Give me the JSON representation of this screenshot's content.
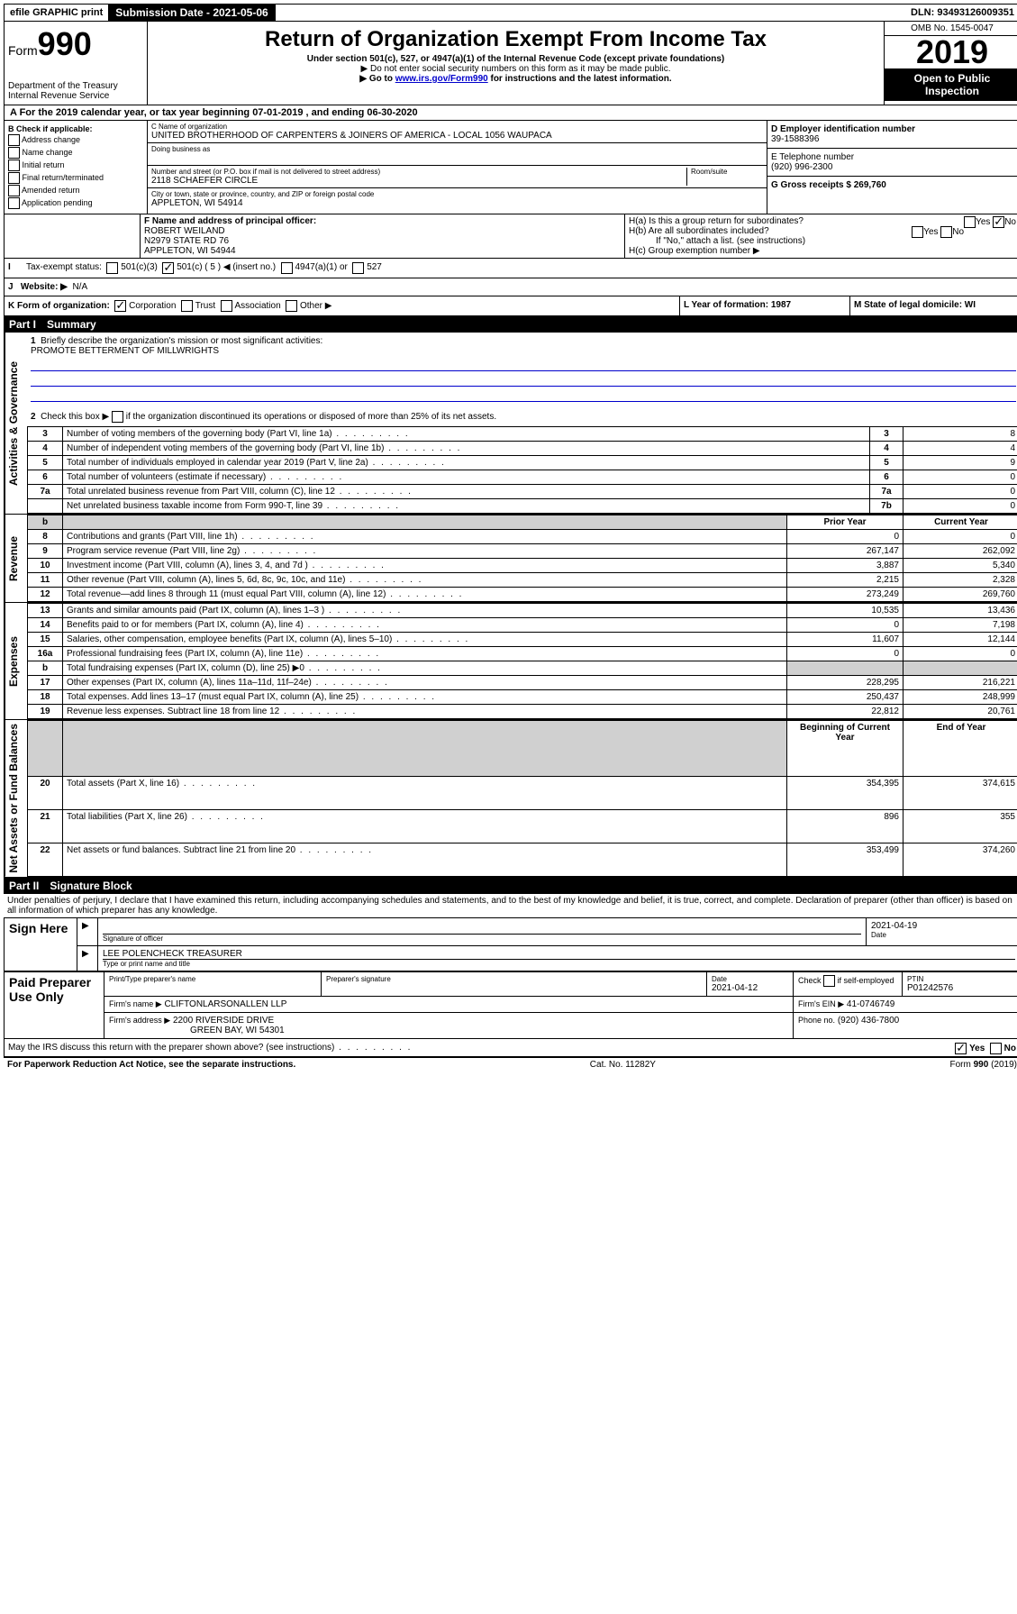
{
  "topbar": {
    "efile": "efile GRAPHIC print",
    "submission": "Submission Date - 2021-05-06",
    "dln": "DLN: 93493126009351"
  },
  "header": {
    "form_prefix": "Form",
    "form_no": "990",
    "dept": "Department of the Treasury",
    "irs": "Internal Revenue Service",
    "title": "Return of Organization Exempt From Income Tax",
    "subtitle": "Under section 501(c), 527, or 4947(a)(1) of the Internal Revenue Code (except private foundations)",
    "note1": "▶ Do not enter social security numbers on this form as it may be made public.",
    "note2_a": "▶ Go to ",
    "note2_link": "www.irs.gov/Form990",
    "note2_b": " for instructions and the latest information.",
    "omb": "OMB No. 1545-0047",
    "year": "2019",
    "open": "Open to Public Inspection"
  },
  "line_a": "A   For the 2019 calendar year, or tax year beginning 07-01-2019    , and ending 06-30-2020",
  "box_b": {
    "title": "B Check if applicable:",
    "items": [
      "Address change",
      "Name change",
      "Initial return",
      "Final return/terminated",
      "Amended return",
      "Application pending"
    ]
  },
  "box_c": {
    "label": "C Name of organization",
    "name": "UNITED BROTHERHOOD OF CARPENTERS & JOINERS OF AMERICA - LOCAL 1056 WAUPACA",
    "dba_label": "Doing business as",
    "addr_label": "Number and street (or P.O. box if mail is not delivered to street address)",
    "room": "Room/suite",
    "addr": "2118 SCHAEFER CIRCLE",
    "city_label": "City or town, state or province, country, and ZIP or foreign postal code",
    "city": "APPLETON, WI  54914"
  },
  "box_d": {
    "label": "D Employer identification number",
    "val": "39-1588396"
  },
  "box_e": {
    "label": "E Telephone number",
    "val": "(920) 996-2300"
  },
  "box_g": {
    "label": "G Gross receipts $ 269,760"
  },
  "box_f": {
    "label": "F  Name and address of principal officer:",
    "name": "ROBERT WEILAND",
    "addr1": "N2979 STATE RD 76",
    "addr2": "APPLETON, WI  54944"
  },
  "box_h": {
    "a": "H(a)  Is this a group return for subordinates?",
    "b": "H(b)  Are all subordinates included?",
    "b_note": "If \"No,\" attach a list. (see instructions)",
    "c": "H(c)  Group exemption number ▶",
    "yes": "Yes",
    "no": "No"
  },
  "box_i": {
    "label": "Tax-exempt status:",
    "c3": "501(c)(3)",
    "c": "501(c) ( 5 ) ◀ (insert no.)",
    "a1": "4947(a)(1) or",
    "527": "527"
  },
  "box_j": {
    "label": "Website: ▶",
    "val": "N/A"
  },
  "box_k": {
    "label": "K Form of organization:",
    "corp": "Corporation",
    "trust": "Trust",
    "assoc": "Association",
    "other": "Other ▶"
  },
  "box_l": {
    "label": "L Year of formation: 1987"
  },
  "box_m": {
    "label": "M State of legal domicile: WI"
  },
  "part1": {
    "num": "Part I",
    "title": "Summary"
  },
  "summary": {
    "q1": "Briefly describe the organization's mission or most significant activities:",
    "q1_val": "PROMOTE BETTERMENT OF MILLWRIGHTS",
    "q2": "Check this box ▶         if the organization discontinued its operations or disposed of more than 25% of its net assets.",
    "rows_top": [
      {
        "n": "3",
        "t": "Number of voting members of the governing body (Part VI, line 1a)",
        "l": "3",
        "v": "8"
      },
      {
        "n": "4",
        "t": "Number of independent voting members of the governing body (Part VI, line 1b)",
        "l": "4",
        "v": "4"
      },
      {
        "n": "5",
        "t": "Total number of individuals employed in calendar year 2019 (Part V, line 2a)",
        "l": "5",
        "v": "9"
      },
      {
        "n": "6",
        "t": "Total number of volunteers (estimate if necessary)",
        "l": "6",
        "v": "0"
      },
      {
        "n": "7a",
        "t": "Total unrelated business revenue from Part VIII, column (C), line 12",
        "l": "7a",
        "v": "0"
      },
      {
        "n": "",
        "t": "Net unrelated business taxable income from Form 990-T, line 39",
        "l": "7b",
        "v": "0"
      }
    ],
    "hdr_prior": "Prior Year",
    "hdr_current": "Current Year",
    "revenue": [
      {
        "n": "8",
        "t": "Contributions and grants (Part VIII, line 1h)",
        "p": "0",
        "c": "0"
      },
      {
        "n": "9",
        "t": "Program service revenue (Part VIII, line 2g)",
        "p": "267,147",
        "c": "262,092"
      },
      {
        "n": "10",
        "t": "Investment income (Part VIII, column (A), lines 3, 4, and 7d )",
        "p": "3,887",
        "c": "5,340"
      },
      {
        "n": "11",
        "t": "Other revenue (Part VIII, column (A), lines 5, 6d, 8c, 9c, 10c, and 11e)",
        "p": "2,215",
        "c": "2,328"
      },
      {
        "n": "12",
        "t": "Total revenue—add lines 8 through 11 (must equal Part VIII, column (A), line 12)",
        "p": "273,249",
        "c": "269,760"
      }
    ],
    "expenses": [
      {
        "n": "13",
        "t": "Grants and similar amounts paid (Part IX, column (A), lines 1–3 )",
        "p": "10,535",
        "c": "13,436"
      },
      {
        "n": "14",
        "t": "Benefits paid to or for members (Part IX, column (A), line 4)",
        "p": "0",
        "c": "7,198"
      },
      {
        "n": "15",
        "t": "Salaries, other compensation, employee benefits (Part IX, column (A), lines 5–10)",
        "p": "11,607",
        "c": "12,144"
      },
      {
        "n": "16a",
        "t": "Professional fundraising fees (Part IX, column (A), line 11e)",
        "p": "0",
        "c": "0"
      },
      {
        "n": "b",
        "t": "Total fundraising expenses (Part IX, column (D), line 25) ▶0",
        "p": "",
        "c": ""
      },
      {
        "n": "17",
        "t": "Other expenses (Part IX, column (A), lines 11a–11d, 11f–24e)",
        "p": "228,295",
        "c": "216,221"
      },
      {
        "n": "18",
        "t": "Total expenses. Add lines 13–17 (must equal Part IX, column (A), line 25)",
        "p": "250,437",
        "c": "248,999"
      },
      {
        "n": "19",
        "t": "Revenue less expenses. Subtract line 18 from line 12",
        "p": "22,812",
        "c": "20,761"
      }
    ],
    "hdr_begin": "Beginning of Current Year",
    "hdr_end": "End of Year",
    "netassets": [
      {
        "n": "20",
        "t": "Total assets (Part X, line 16)",
        "p": "354,395",
        "c": "374,615"
      },
      {
        "n": "21",
        "t": "Total liabilities (Part X, line 26)",
        "p": "896",
        "c": "355"
      },
      {
        "n": "22",
        "t": "Net assets or fund balances. Subtract line 21 from line 20",
        "p": "353,499",
        "c": "374,260"
      }
    ],
    "vlabels": {
      "gov": "Activities & Governance",
      "rev": "Revenue",
      "exp": "Expenses",
      "net": "Net Assets or Fund Balances"
    }
  },
  "part2": {
    "num": "Part II",
    "title": "Signature Block"
  },
  "perjury": "Under penalties of perjury, I declare that I have examined this return, including accompanying schedules and statements, and to the best of my knowledge and belief, it is true, correct, and complete. Declaration of preparer (other than officer) is based on all information of which preparer has any knowledge.",
  "sign": {
    "here": "Sign Here",
    "sig_officer": "Signature of officer",
    "date": "2021-04-19",
    "date_lbl": "Date",
    "name": "LEE POLENCHECK  TREASURER",
    "name_lbl": "Type or print name and title"
  },
  "prep": {
    "title": "Paid Preparer Use Only",
    "h1": "Print/Type preparer's name",
    "h2": "Preparer's signature",
    "h3": "Date",
    "h3v": "2021-04-12",
    "h4": "Check         if self-employed",
    "h5": "PTIN",
    "h5v": "P01242576",
    "firm_lbl": "Firm's name     ▶",
    "firm": "CLIFTONLARSONALLEN LLP",
    "ein_lbl": "Firm's EIN ▶",
    "ein": "41-0746749",
    "addr_lbl": "Firm's address ▶",
    "addr1": "2200 RIVERSIDE DRIVE",
    "addr2": "GREEN BAY, WI  54301",
    "phone_lbl": "Phone no.",
    "phone": "(920) 436-7800"
  },
  "discuss": "May the IRS discuss this return with the preparer shown above? (see instructions)",
  "footer": {
    "left": "For Paperwork Reduction Act Notice, see the separate instructions.",
    "mid": "Cat. No. 11282Y",
    "right": "Form 990 (2019)"
  }
}
